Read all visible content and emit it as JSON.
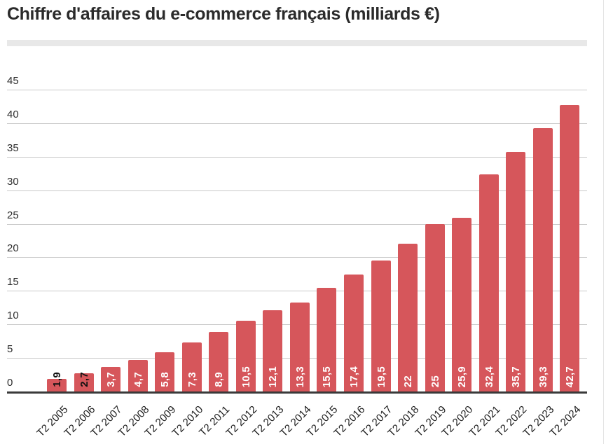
{
  "title": "Chiffre d'affaires du e-commerce français (milliards €)",
  "chart_data": {
    "type": "bar",
    "title": "Chiffre d'affaires du e-commerce français (milliards €)",
    "categories": [
      "T2 2005",
      "T2 2006",
      "T2 2007",
      "T2 2008",
      "T2 2009",
      "T2 2010",
      "T2 2011",
      "T2 2012",
      "T2 2013",
      "T2 2014",
      "T2 2015",
      "T2 2016",
      "T2 2017",
      "T2 2018",
      "T2 2019",
      "T2 2020",
      "T2 2021",
      "T2 2022",
      "T2 2023",
      "T2 2024"
    ],
    "values": [
      1.9,
      2.7,
      3.7,
      4.7,
      5.8,
      7.3,
      8.9,
      10.5,
      12.1,
      13.3,
      15.5,
      17.4,
      19.5,
      22,
      25,
      25.9,
      32.4,
      35.7,
      39.3,
      42.7
    ],
    "value_labels": [
      "1,9",
      "2,7",
      "3,7",
      "4,7",
      "5,8",
      "7,3",
      "8,9",
      "10,5",
      "12,1",
      "13,3",
      "15,5",
      "17,4",
      "19,5",
      "22",
      "25",
      "25,9",
      "32,4",
      "35,7",
      "39,3",
      "42,7"
    ],
    "xlabel": "",
    "ylabel": "",
    "ylim": [
      0,
      45
    ],
    "ytick_values": [
      0,
      5,
      10,
      15,
      20,
      25,
      30,
      35,
      40,
      45
    ],
    "ytick_labels": [
      "0",
      "5",
      "10",
      "15",
      "20",
      "25",
      "30",
      "35",
      "40",
      "45"
    ],
    "grid": "horizontal",
    "legend": "none",
    "value_label_rotation": -90,
    "xtick_rotation": -45,
    "colors": {
      "bar": "#d6565b",
      "value_label_inside": "#ffffff",
      "value_label_outside": "#111111",
      "gridline": "#c9c9c9",
      "axis_line": "#3a3a3a",
      "axis_text": "#1b1b1b",
      "title_text": "#2b2b2b",
      "divider": "#e8e8e8",
      "background": "#ffffff"
    }
  }
}
